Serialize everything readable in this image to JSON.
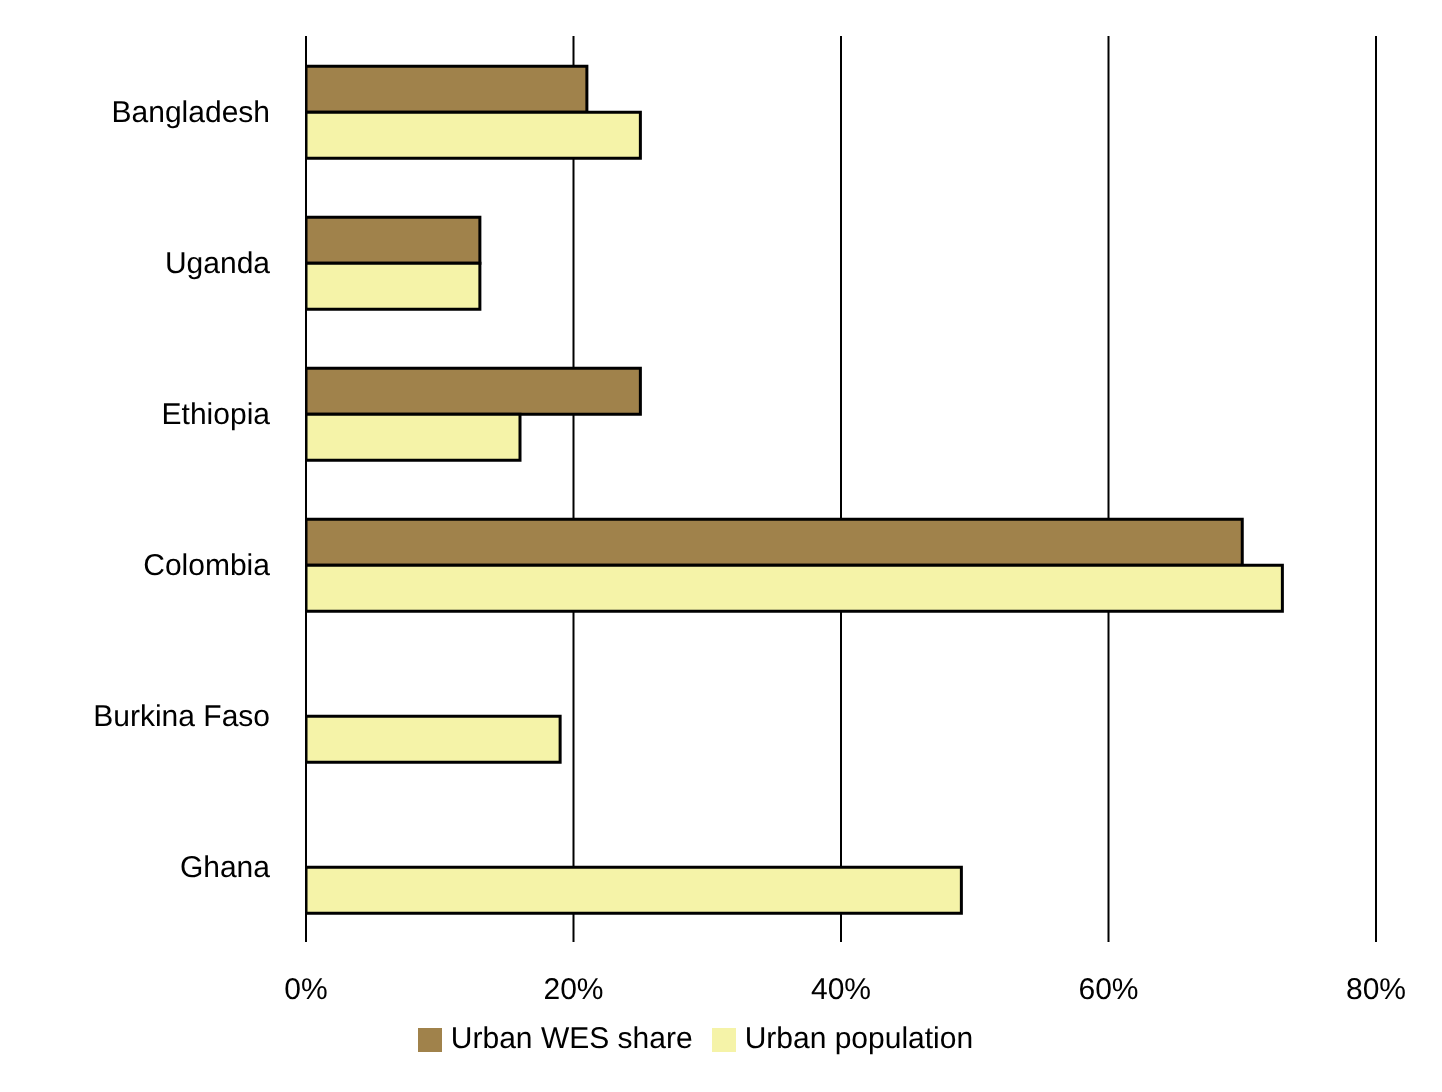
{
  "chart_data": {
    "type": "bar",
    "orientation": "horizontal",
    "categories": [
      "Bangladesh",
      "Uganda",
      "Ethiopia",
      "Colombia",
      "Burkina Faso",
      "Ghana"
    ],
    "series": [
      {
        "name": "Urban WES share",
        "color": "#a0824b",
        "values": [
          21,
          13,
          25,
          70,
          null,
          null
        ]
      },
      {
        "name": "Urban population",
        "color": "#f5f3a8",
        "values": [
          25,
          13,
          16,
          73,
          19,
          49
        ]
      }
    ],
    "xlim": [
      0,
      80
    ],
    "xticks": [
      {
        "value": 0,
        "label": "0%"
      },
      {
        "value": 20,
        "label": "20%"
      },
      {
        "value": 40,
        "label": "40%"
      },
      {
        "value": 60,
        "label": "60%"
      },
      {
        "value": 80,
        "label": "80%"
      }
    ],
    "grid": "x",
    "legend": "bottom"
  }
}
